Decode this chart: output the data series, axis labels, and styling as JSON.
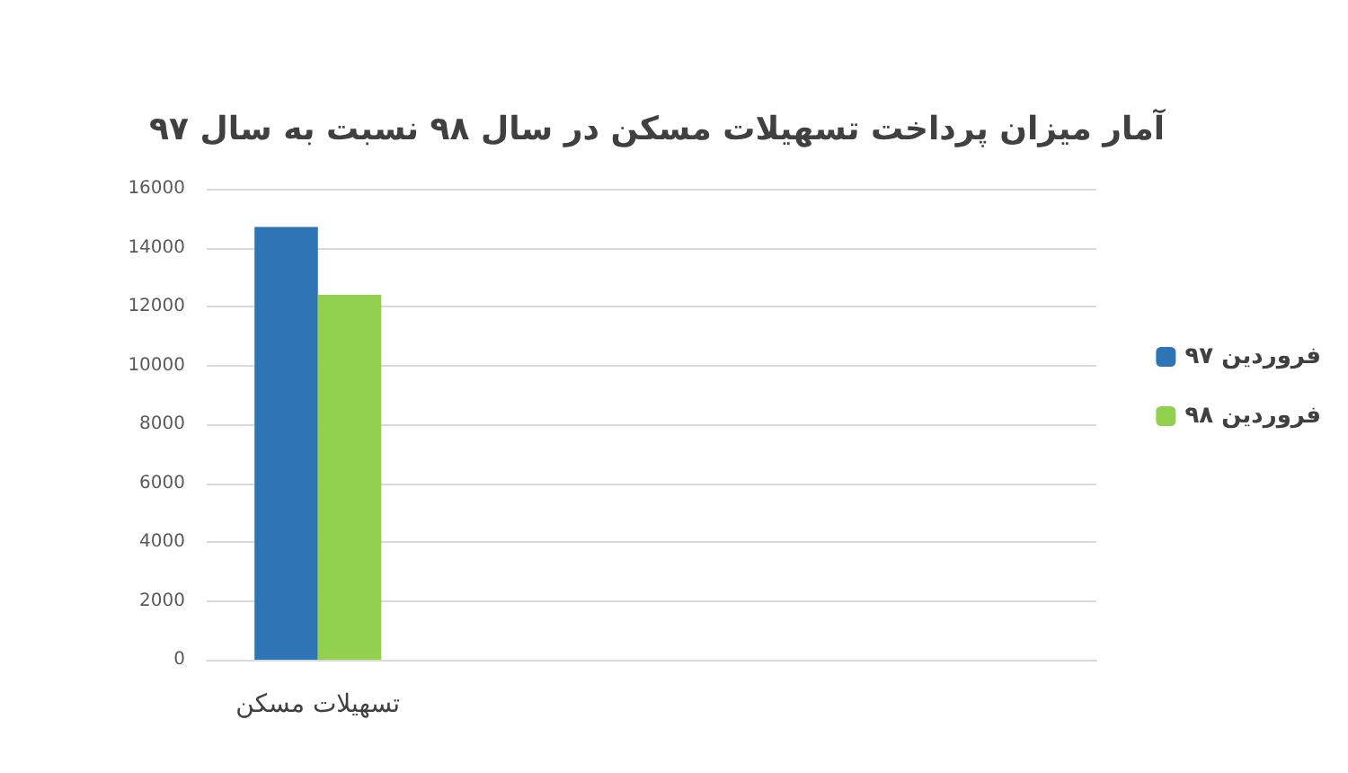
{
  "chart_data": {
    "type": "bar",
    "title": "آمار میزان پرداخت تسهیلات مسکن در سال ۹۸ نسبت به سال ۹۷",
    "categories": [
      "تسهیلات مسکن",
      null,
      null,
      null
    ],
    "series": [
      {
        "name": "فروردین ۹۷",
        "color": "#2e75b6",
        "values": [
          14700,
          null,
          null,
          null
        ]
      },
      {
        "name": "فروردین ۹۸",
        "color": "#92d050",
        "values": [
          12400,
          null,
          null,
          null
        ]
      }
    ],
    "ylim": [
      0,
      16000
    ],
    "yticks": [
      0,
      2000,
      4000,
      6000,
      8000,
      10000,
      12000,
      14000,
      16000
    ],
    "grid": "y",
    "legend": "right"
  }
}
